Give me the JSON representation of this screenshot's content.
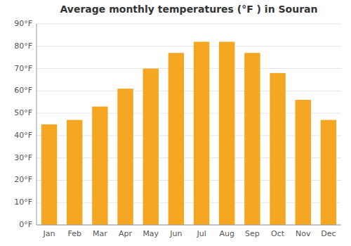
{
  "chart_data": {
    "type": "bar",
    "title": "Average monthly temperatures (°F ) in Souran",
    "categories": [
      "Jan",
      "Feb",
      "Mar",
      "Apr",
      "May",
      "Jun",
      "Jul",
      "Aug",
      "Sep",
      "Oct",
      "Nov",
      "Dec"
    ],
    "values": [
      45,
      47,
      53,
      61,
      70,
      77,
      82,
      82,
      77,
      68,
      56,
      47
    ],
    "color": "#F5A623",
    "ylim": [
      0,
      90
    ],
    "yticks": [
      {
        "value": 0,
        "label": "0°F"
      },
      {
        "value": 10,
        "label": "10°F"
      },
      {
        "value": 20,
        "label": "20°F"
      },
      {
        "value": 30,
        "label": "30°F"
      },
      {
        "value": 40,
        "label": "40°F"
      },
      {
        "value": 50,
        "label": "50°F"
      },
      {
        "value": 60,
        "label": "60°F"
      },
      {
        "value": 70,
        "label": "70°F"
      },
      {
        "value": 80,
        "label": "80°F"
      },
      {
        "value": 90,
        "label": "90°F"
      }
    ],
    "grid": true
  }
}
